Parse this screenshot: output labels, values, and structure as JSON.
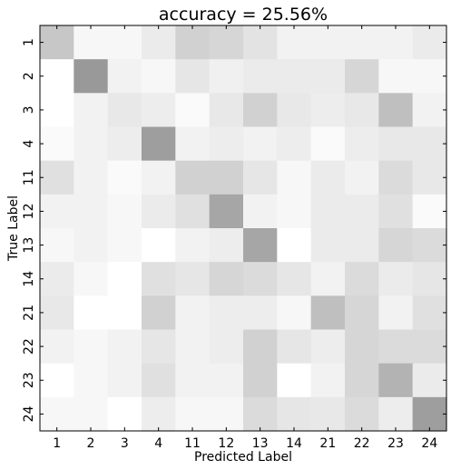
{
  "chart_data": {
    "type": "heatmap",
    "title": "accuracy = 25.56%",
    "xlabel": "Predicted Label",
    "ylabel": "True Label",
    "x_categories": [
      "1",
      "2",
      "3",
      "4",
      "11",
      "12",
      "13",
      "14",
      "21",
      "22",
      "23",
      "24"
    ],
    "y_categories": [
      "1",
      "2",
      "3",
      "4",
      "11",
      "12",
      "13",
      "14",
      "21",
      "22",
      "23",
      "24"
    ],
    "colormap": "Greys",
    "value_range": [
      0,
      1
    ],
    "grid": false,
    "values": [
      [
        0.22,
        0.03,
        0.03,
        0.08,
        0.18,
        0.16,
        0.11,
        0.05,
        0.05,
        0.05,
        0.05,
        0.08
      ],
      [
        0.0,
        0.4,
        0.05,
        0.03,
        0.1,
        0.06,
        0.08,
        0.08,
        0.08,
        0.16,
        0.03,
        0.03
      ],
      [
        0.0,
        0.05,
        0.09,
        0.07,
        0.02,
        0.09,
        0.18,
        0.09,
        0.07,
        0.09,
        0.25,
        0.05
      ],
      [
        0.02,
        0.05,
        0.07,
        0.38,
        0.05,
        0.07,
        0.05,
        0.07,
        0.02,
        0.07,
        0.09,
        0.09
      ],
      [
        0.12,
        0.05,
        0.02,
        0.05,
        0.18,
        0.18,
        0.1,
        0.03,
        0.08,
        0.05,
        0.14,
        0.09
      ],
      [
        0.05,
        0.05,
        0.03,
        0.08,
        0.12,
        0.35,
        0.05,
        0.03,
        0.08,
        0.08,
        0.12,
        0.02
      ],
      [
        0.03,
        0.05,
        0.03,
        0.0,
        0.05,
        0.07,
        0.35,
        0.0,
        0.08,
        0.08,
        0.16,
        0.14
      ],
      [
        0.08,
        0.03,
        0.0,
        0.12,
        0.1,
        0.16,
        0.14,
        0.1,
        0.05,
        0.14,
        0.08,
        0.1
      ],
      [
        0.09,
        0.0,
        0.0,
        0.18,
        0.05,
        0.07,
        0.07,
        0.03,
        0.25,
        0.16,
        0.05,
        0.12
      ],
      [
        0.05,
        0.03,
        0.05,
        0.1,
        0.05,
        0.07,
        0.18,
        0.1,
        0.07,
        0.16,
        0.14,
        0.14
      ],
      [
        0.0,
        0.03,
        0.05,
        0.12,
        0.05,
        0.05,
        0.18,
        0.0,
        0.05,
        0.16,
        0.3,
        0.08
      ],
      [
        0.03,
        0.03,
        0.0,
        0.07,
        0.03,
        0.03,
        0.14,
        0.1,
        0.09,
        0.14,
        0.07,
        0.38
      ]
    ]
  }
}
